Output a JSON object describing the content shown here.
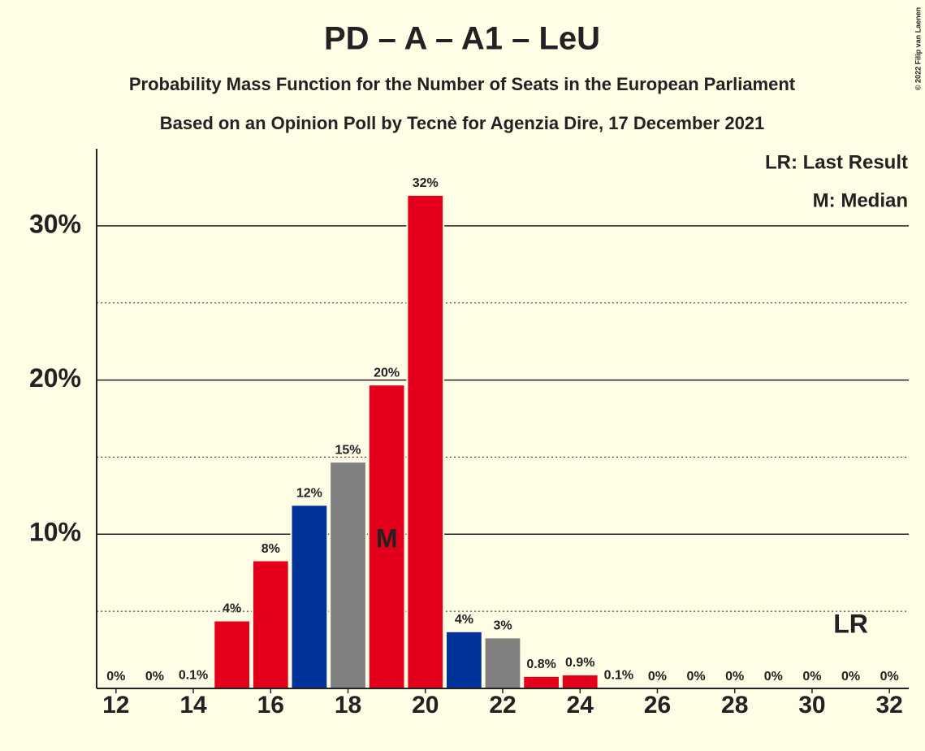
{
  "chart_data": {
    "type": "bar",
    "title": "PD – A – A1 – LeU",
    "subtitle": "Probability Mass Function for the Number of Seats in the European Parliament",
    "subtitle2": "Based on an Opinion Poll by Tecnè for Agenzia Dire, 17 December 2021",
    "copyright": "© 2022 Filip van Laenen",
    "legend": [
      "LR: Last Result",
      "M: Median"
    ],
    "x": [
      12,
      13,
      14,
      15,
      16,
      17,
      18,
      19,
      20,
      21,
      22,
      23,
      24,
      25,
      26,
      27,
      28,
      29,
      30,
      31,
      32
    ],
    "values": [
      0,
      0,
      0.1,
      4.4,
      8.3,
      11.9,
      14.7,
      19.7,
      32.0,
      3.7,
      3.3,
      0.8,
      0.9,
      0.1,
      0,
      0,
      0,
      0,
      0,
      0,
      0
    ],
    "value_labels": [
      "0%",
      "0%",
      "0.1%",
      "4%",
      "8%",
      "12%",
      "15%",
      "20%",
      "32%",
      "4%",
      "3%",
      "0.8%",
      "0.9%",
      "0.1%",
      "0%",
      "0%",
      "0%",
      "0%",
      "0%",
      "0%",
      "0%"
    ],
    "colors": [
      "#e4001b",
      "#e4001b",
      "#e4001b",
      "#e4001b",
      "#e4001b",
      "#003399",
      "#808080",
      "#e4001b",
      "#e4001b",
      "#003399",
      "#808080",
      "#e4001b",
      "#e4001b",
      "#e4001b",
      "#e4001b",
      "#e4001b",
      "#e4001b",
      "#e4001b",
      "#e4001b",
      "#e4001b",
      "#e4001b"
    ],
    "annotations": [
      {
        "text": "M",
        "x": 19
      },
      {
        "text": "LR",
        "x": 31
      }
    ],
    "xlim": [
      11.5,
      32.5
    ],
    "xticks": [
      12,
      14,
      16,
      18,
      20,
      22,
      24,
      26,
      28,
      30,
      32
    ],
    "ylim": [
      0,
      35
    ],
    "yticks": [
      {
        "value": 10,
        "label": "10%"
      },
      {
        "value": 20,
        "label": "20%"
      },
      {
        "value": 30,
        "label": "30%"
      }
    ],
    "minor_grid": [
      5,
      15,
      25
    ],
    "grid": true
  }
}
